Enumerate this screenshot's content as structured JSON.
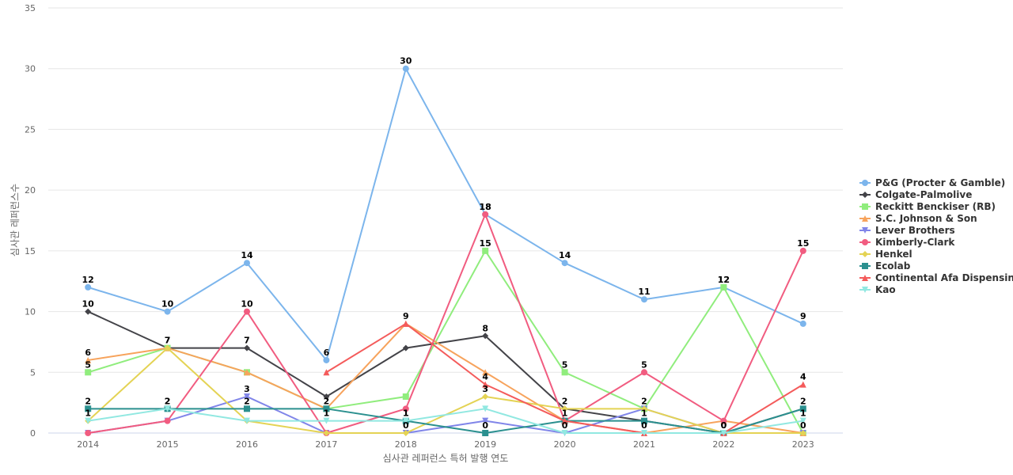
{
  "chart_data": {
    "type": "line",
    "xlabel": "심사관 레퍼런스 특허 발행 연도",
    "ylabel": "심사관 레퍼런스수",
    "ylim": [
      0,
      35
    ],
    "yticks": [
      0,
      5,
      10,
      15,
      20,
      25,
      30,
      35
    ],
    "grid": true,
    "legend_position": "right",
    "x": [
      "2014",
      "2015",
      "2016",
      "2017",
      "2018",
      "2019",
      "2020",
      "2021",
      "2022",
      "2023"
    ],
    "series": [
      {
        "name": "P&G (Procter & Gamble)",
        "color": "#7cb5ec",
        "marker": "circle",
        "values": [
          12,
          10,
          14,
          6,
          30,
          18,
          14,
          11,
          12,
          9
        ]
      },
      {
        "name": "Colgate-Palmolive",
        "color": "#434348",
        "marker": "diamond",
        "values": [
          10,
          7,
          7,
          3,
          7,
          8,
          2,
          1,
          0,
          2
        ]
      },
      {
        "name": "Reckitt Benckiser (RB)",
        "color": "#90ed7d",
        "marker": "square",
        "values": [
          5,
          7,
          5,
          2,
          3,
          15,
          5,
          2,
          12,
          0
        ]
      },
      {
        "name": "S.C. Johnson & Son",
        "color": "#f7a35c",
        "marker": "triangle",
        "values": [
          6,
          7,
          5,
          2,
          9,
          5,
          1,
          0,
          1,
          0
        ]
      },
      {
        "name": "Lever Brothers",
        "color": "#8085e9",
        "marker": "triangle-down",
        "values": [
          0,
          1,
          3,
          0,
          0,
          1,
          0,
          2,
          0,
          0
        ]
      },
      {
        "name": "Kimberly-Clark",
        "color": "#f15c80",
        "marker": "circle",
        "values": [
          0,
          1,
          10,
          0,
          2,
          18,
          1,
          5,
          1,
          15
        ]
      },
      {
        "name": "Henkel",
        "color": "#e4d354",
        "marker": "diamond",
        "values": [
          1,
          7,
          1,
          0,
          0,
          3,
          2,
          2,
          0,
          0
        ]
      },
      {
        "name": "Ecolab",
        "color": "#2b908f",
        "marker": "square",
        "values": [
          2,
          2,
          2,
          2,
          1,
          0,
          1,
          1,
          0,
          2
        ]
      },
      {
        "name": "Continental Afa Dispensing",
        "color": "#f45b5b",
        "marker": "triangle",
        "values": [
          null,
          null,
          null,
          5,
          9,
          4,
          1,
          0,
          0,
          4
        ]
      },
      {
        "name": "Kao",
        "color": "#91e8e1",
        "marker": "triangle-down",
        "values": [
          1,
          2,
          1,
          1,
          1,
          2,
          0,
          0,
          0,
          1
        ]
      }
    ],
    "data_labels": [
      {
        "series": 0,
        "points": [
          0,
          1,
          2,
          3,
          4,
          5,
          6,
          7,
          8,
          9
        ]
      },
      {
        "series": 1,
        "points": [
          0,
          1,
          2,
          5
        ]
      },
      {
        "series": 2,
        "points": [
          0,
          5,
          6,
          8
        ]
      },
      {
        "series": 3,
        "points": [
          0,
          3
        ]
      },
      {
        "series": 4,
        "points": [
          2,
          6,
          7
        ]
      },
      {
        "series": 5,
        "points": [
          2,
          5,
          7,
          9
        ]
      },
      {
        "series": 6,
        "points": [
          0,
          1,
          4,
          5,
          6,
          8,
          9
        ]
      },
      {
        "series": 7,
        "points": [
          0,
          1,
          2,
          4,
          5,
          6,
          7,
          9
        ]
      },
      {
        "series": 8,
        "points": [
          4,
          5,
          9
        ]
      },
      {
        "series": 9,
        "points": [
          1,
          3,
          4,
          7,
          8,
          9
        ]
      }
    ]
  }
}
